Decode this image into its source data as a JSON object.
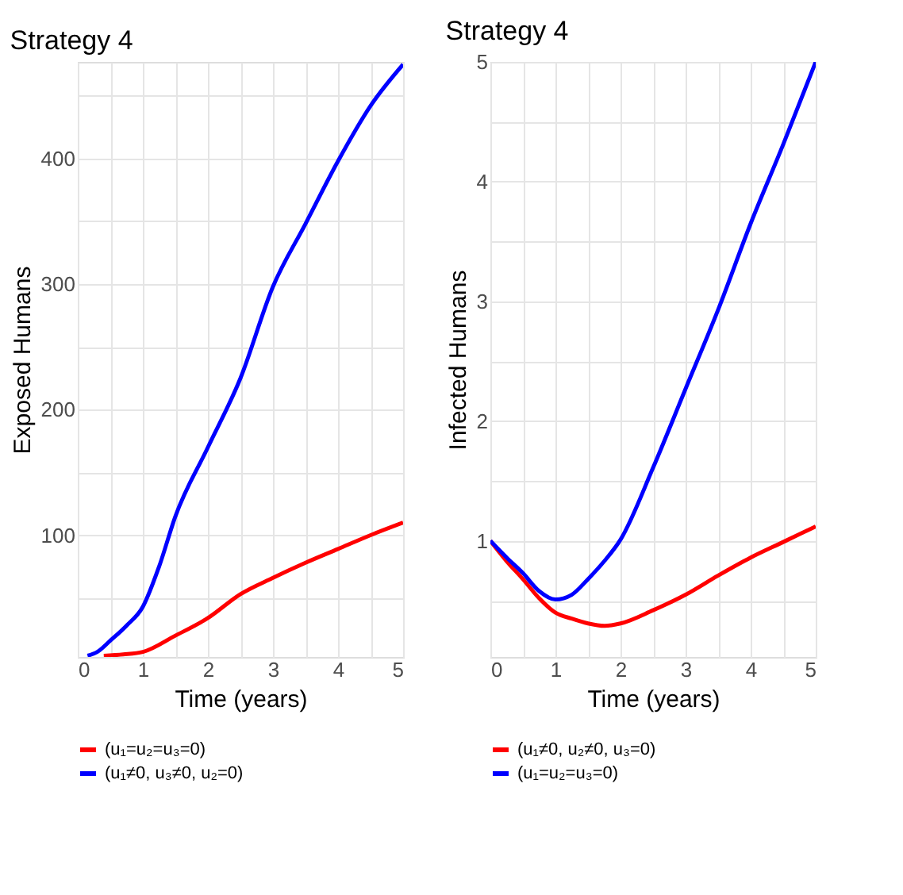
{
  "chart_data": [
    {
      "type": "line",
      "title": "Strategy 4",
      "xlabel": "Time (years)",
      "ylabel": "Exposed Humans",
      "xlim": [
        0,
        5
      ],
      "ylim": [
        3,
        477
      ],
      "xticks": [
        0,
        {
          "value": 0.5,
          "label": null
        },
        1,
        {
          "value": 1.5,
          "label": null
        },
        2,
        {
          "value": 2.5,
          "label": null
        },
        3,
        {
          "value": 3.5,
          "label": null
        },
        4,
        {
          "value": 4.5,
          "label": null
        },
        5
      ],
      "yticks": [
        {
          "value": 50,
          "label": null
        },
        100,
        {
          "value": 150,
          "label": null
        },
        200,
        {
          "value": 250,
          "label": null
        },
        300,
        {
          "value": 350,
          "label": null
        },
        400,
        {
          "value": 450,
          "label": null
        }
      ],
      "grid": true,
      "legend": "bottom",
      "marker": "none",
      "line_style": "solid",
      "series": [
        {
          "name": "(u₁=u₂=u₃=0)",
          "color": "#ff0000",
          "x": [
            0.4,
            0.7,
            1,
            1.5,
            2,
            2.5,
            3,
            3.5,
            4,
            4.5,
            5
          ],
          "values": [
            4,
            5,
            7,
            20,
            34,
            53,
            66,
            78,
            89,
            100,
            110
          ]
        },
        {
          "name": "(u₁≠0, u₃≠0, u₂=0)",
          "color": "#0000ff",
          "x": [
            0.15,
            0.3,
            0.5,
            0.75,
            1,
            1.25,
            1.5,
            2,
            2.5,
            3,
            3.5,
            4,
            4.5,
            5
          ],
          "values": [
            4,
            7,
            16,
            28,
            43,
            75,
            115,
            170,
            225,
            298,
            348,
            398,
            442,
            475
          ]
        }
      ]
    },
    {
      "type": "line",
      "title": "Strategy 4",
      "xlabel": "Time (years)",
      "ylabel": "Infected Humans",
      "xlim": [
        0,
        5
      ],
      "ylim": [
        0.03,
        5
      ],
      "xticks": [
        0,
        {
          "value": 0.5,
          "label": null
        },
        1,
        {
          "value": 1.5,
          "label": null
        },
        2,
        {
          "value": 2.5,
          "label": null
        },
        3,
        {
          "value": 3.5,
          "label": null
        },
        4,
        {
          "value": 4.5,
          "label": null
        },
        5
      ],
      "yticks": [
        {
          "value": 0.5,
          "label": null
        },
        1,
        {
          "value": 1.5,
          "label": null
        },
        2,
        {
          "value": 2.5,
          "label": null
        },
        3,
        {
          "value": 3.5,
          "label": null
        },
        4,
        {
          "value": 4.5,
          "label": null
        },
        5
      ],
      "grid": true,
      "legend": "bottom",
      "marker": "none",
      "line_style": "solid",
      "series": [
        {
          "name": "(u₁≠0, u₂≠0, u₃=0)",
          "color": "#ff0000",
          "x": [
            0,
            0.25,
            0.5,
            0.75,
            1,
            1.25,
            1.5,
            1.75,
            2,
            2.5,
            3,
            3.5,
            4,
            4.5,
            5
          ],
          "values": [
            1.0,
            0.83,
            0.68,
            0.52,
            0.4,
            0.35,
            0.31,
            0.29,
            0.31,
            0.42,
            0.55,
            0.71,
            0.86,
            0.99,
            1.12
          ]
        },
        {
          "name": "(u₁=u₂=u₃=0)",
          "color": "#0000ff",
          "x": [
            0,
            0.25,
            0.5,
            0.75,
            1,
            1.25,
            1.5,
            1.75,
            2,
            2.5,
            3,
            3.5,
            4,
            4.5,
            5
          ],
          "values": [
            1.0,
            0.86,
            0.73,
            0.58,
            0.51,
            0.55,
            0.68,
            0.83,
            1.01,
            1.61,
            2.27,
            2.93,
            3.65,
            4.31,
            5.0
          ]
        }
      ]
    }
  ]
}
